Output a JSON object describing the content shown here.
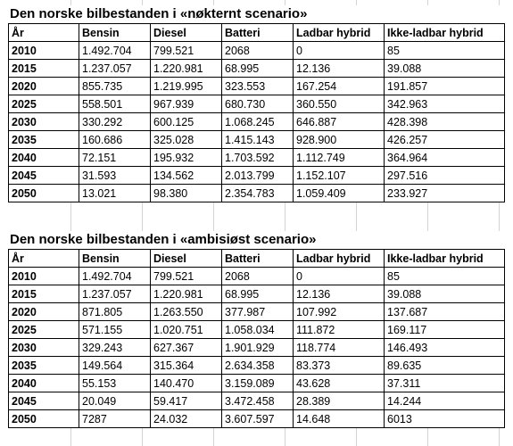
{
  "tables": [
    {
      "title": "Den norske bilbestanden i «nøkternt scenario»",
      "headers": [
        "År",
        "Bensin",
        "Diesel",
        "Batteri",
        "Ladbar hybrid",
        "Ikke-ladbar hybrid"
      ],
      "rows": [
        [
          "2010",
          "1.492.704",
          "799.521",
          "2068",
          "0",
          "85"
        ],
        [
          "2015",
          "1.237.057",
          "1.220.981",
          "68.995",
          "12.136",
          "39.088"
        ],
        [
          "2020",
          "855.735",
          "1.219.995",
          "323.553",
          "167.254",
          "191.857"
        ],
        [
          "2025",
          "558.501",
          "967.939",
          "680.730",
          "360.550",
          "342.963"
        ],
        [
          "2030",
          "330.292",
          "600.125",
          "1.068.245",
          "646.887",
          "428.398"
        ],
        [
          "2035",
          "160.686",
          "325.028",
          "1.415.143",
          "928.900",
          "426.257"
        ],
        [
          "2040",
          "72.151",
          "195.932",
          "1.703.592",
          "1.112.749",
          "364.964"
        ],
        [
          "2045",
          "31.593",
          "134.562",
          "2.013.799",
          "1.152.107",
          "297.516"
        ],
        [
          "2050",
          "13.021",
          "98.380",
          "2.354.783",
          "1.059.409",
          "233.927"
        ]
      ]
    },
    {
      "title": "Den norske bilbestanden i «ambisiøst scenario»",
      "headers": [
        "År",
        "Bensin",
        "Diesel",
        "Batteri",
        "Ladbar hybrid",
        "Ikke-ladbar hybrid"
      ],
      "rows": [
        [
          "2010",
          "1.492.704",
          "799.521",
          "2068",
          "0",
          "85"
        ],
        [
          "2015",
          "1.237.057",
          "1.220.981",
          "68.995",
          "12.136",
          "39.088"
        ],
        [
          "2020",
          "871.805",
          "1.263.550",
          "377.987",
          "107.992",
          "137.687"
        ],
        [
          "2025",
          "571.155",
          "1.020.751",
          "1.058.034",
          "111.872",
          "169.117"
        ],
        [
          "2030",
          "329.243",
          "627.367",
          "1.901.929",
          "118.774",
          "146.493"
        ],
        [
          "2035",
          "149.564",
          "315.364",
          "2.634.358",
          "83.373",
          "89.635"
        ],
        [
          "2040",
          "55.153",
          "140.470",
          "3.159.089",
          "43.628",
          "37.311"
        ],
        [
          "2045",
          "20.049",
          "59.417",
          "3.472.458",
          "28.389",
          "14.244"
        ],
        [
          "2050",
          "7287",
          "24.032",
          "3.607.597",
          "14.648",
          "6013"
        ]
      ]
    }
  ]
}
